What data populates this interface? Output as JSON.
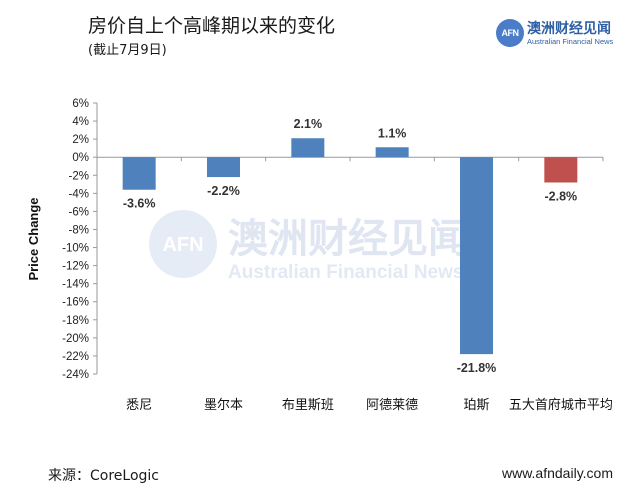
{
  "header": {
    "title": "房价自上个高峰期以来的变化",
    "subtitle": "(截止7月9日)"
  },
  "logo": {
    "badge": "AFN",
    "cn": "澳洲财经见闻",
    "en": "Australian Financial News"
  },
  "watermark": {
    "badge": "AFN",
    "cn": "澳洲财经见闻",
    "en": "Australian Financial News"
  },
  "footer": {
    "source": "来源：CoreLogic",
    "url": "www.afndaily.com"
  },
  "chart_data": {
    "type": "bar",
    "title": "房价自上个高峰期以来的变化",
    "subtitle": "(截止7月9日)",
    "ylabel": "Price Change",
    "xlabel": "",
    "categories": [
      "悉尼",
      "墨尔本",
      "布里斯班",
      "阿德莱德",
      "珀斯",
      "五大首府城市平均"
    ],
    "values": [
      -3.6,
      -2.2,
      2.1,
      1.1,
      -21.8,
      -2.8
    ],
    "data_labels": [
      "-3.6%",
      "-2.2%",
      "2.1%",
      "1.1%",
      "-21.8%",
      "-2.8%"
    ],
    "ylim": [
      -24,
      6
    ],
    "yticks": [
      6,
      4,
      2,
      0,
      -2,
      -4,
      -6,
      -8,
      -10,
      -12,
      -14,
      -16,
      -18,
      -20,
      -22,
      -24
    ],
    "ytick_labels": [
      "6%",
      "4%",
      "2%",
      "0%",
      "-2%",
      "-4%",
      "-6%",
      "-8%",
      "-10%",
      "-12%",
      "-14%",
      "-16%",
      "-18%",
      "-20%",
      "-22%",
      "-24%"
    ],
    "colors": [
      "#4f81bd",
      "#4f81bd",
      "#4f81bd",
      "#4f81bd",
      "#4f81bd",
      "#c0504d"
    ],
    "grid": false,
    "legend": "none"
  }
}
